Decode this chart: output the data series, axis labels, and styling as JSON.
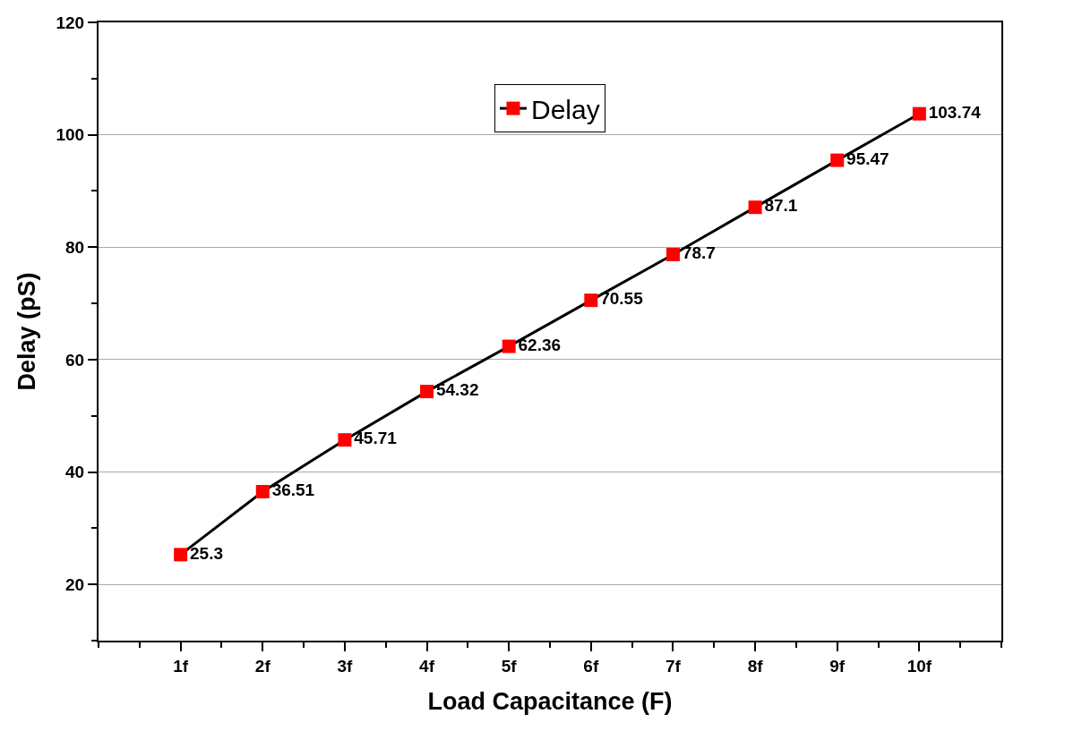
{
  "chart_data": {
    "type": "line",
    "xlabel": "Load Capacitance (F)",
    "ylabel": "Delay (pS)",
    "x": [
      1,
      2,
      3,
      4,
      5,
      6,
      7,
      8,
      9,
      10
    ],
    "series": [
      {
        "name": "Delay",
        "color": "#ff0000",
        "values": [
          25.3,
          36.51,
          45.71,
          54.32,
          62.36,
          70.55,
          78.7,
          87.1,
          95.47,
          103.74
        ]
      }
    ],
    "xlim": [
      0,
      11
    ],
    "xticks": [
      {
        "value": 1,
        "label": "1f"
      },
      {
        "value": 2,
        "label": "2f"
      },
      {
        "value": 3,
        "label": "3f"
      },
      {
        "value": 4,
        "label": "4f"
      },
      {
        "value": 5,
        "label": "5f"
      },
      {
        "value": 6,
        "label": "6f"
      },
      {
        "value": 7,
        "label": "7f"
      },
      {
        "value": 8,
        "label": "8f"
      },
      {
        "value": 9,
        "label": "9f"
      },
      {
        "value": 10,
        "label": "10f"
      }
    ],
    "ylim": [
      10,
      120
    ],
    "yticks": [
      20,
      40,
      60,
      80,
      100,
      120
    ],
    "grid": "y",
    "legend": "top",
    "marker": "square",
    "line_style": "solid",
    "data_labels": true
  }
}
